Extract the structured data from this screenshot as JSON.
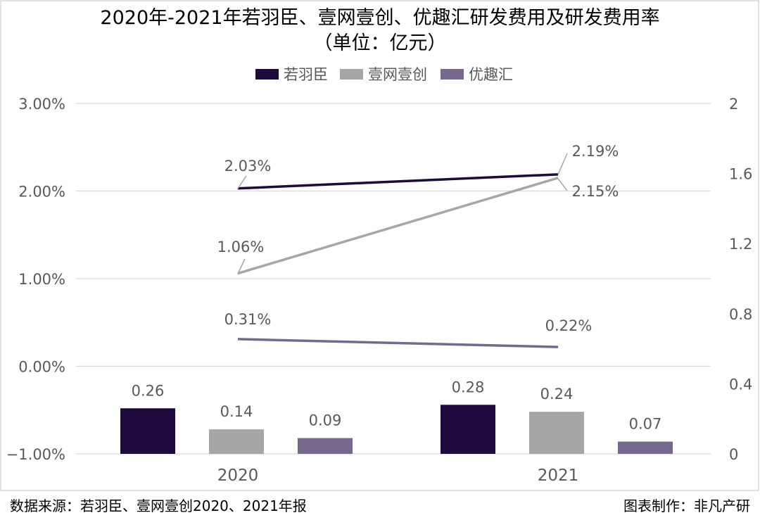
{
  "chart_data": {
    "type": "bar+line",
    "title": "2020年-2021年若羽臣、壹网壹创、优趣汇研发费用及研发费用率",
    "subtitle": "（单位：亿元）",
    "categories": [
      "2020",
      "2021"
    ],
    "left_axis": {
      "ylim": [
        -1,
        3
      ],
      "ticks": [
        "3.00%",
        "2.00%",
        "1.00%",
        "0.00%",
        "-1.00%"
      ],
      "tick_values": [
        3,
        2,
        1,
        0,
        -1
      ]
    },
    "right_axis": {
      "ylim": [
        0,
        2
      ],
      "ticks": [
        "2",
        "1.6",
        "1.2",
        "0.8",
        "0.4",
        "0"
      ],
      "tick_values": [
        2,
        1.6,
        1.2,
        0.8,
        0.4,
        0
      ]
    },
    "grid": true,
    "legend_position": "top",
    "series": [
      {
        "name": "若羽臣",
        "color": "#1e0a3c",
        "bar_values": [
          0.26,
          0.28
        ],
        "bar_labels": [
          "0.26",
          "0.28"
        ],
        "rate_values": [
          2.03,
          2.19
        ],
        "rate_labels": [
          "2.03%",
          "2.19%"
        ]
      },
      {
        "name": "壹网壹创",
        "color": "#a6a6a6",
        "bar_values": [
          0.14,
          0.24
        ],
        "bar_labels": [
          "0.14",
          "0.24"
        ],
        "rate_values": [
          1.06,
          2.15
        ],
        "rate_labels": [
          "1.06%",
          "2.15%"
        ]
      },
      {
        "name": "优趣汇",
        "color": "#76688f",
        "bar_values": [
          0.09,
          0.07
        ],
        "bar_labels": [
          "0.09",
          "0.07"
        ],
        "rate_values": [
          0.31,
          0.22
        ],
        "rate_labels": [
          "0.31%",
          "0.22%"
        ]
      }
    ]
  },
  "footer": {
    "source": "数据来源：若羽臣、壹网壹创2020、2021年报",
    "credit": "图表制作：非凡产研"
  }
}
